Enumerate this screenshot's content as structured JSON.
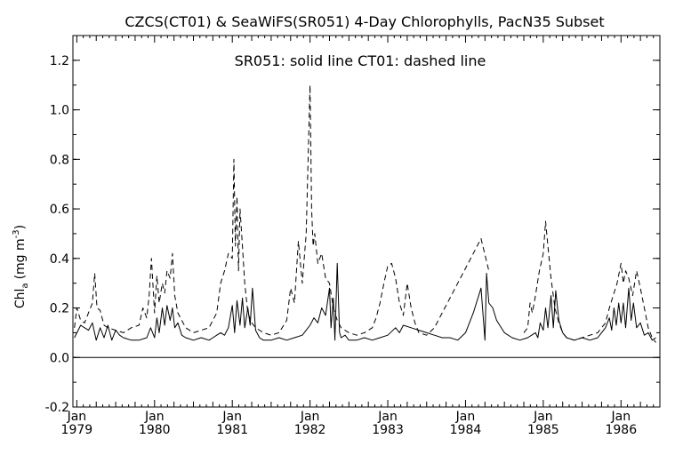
{
  "chart_data": {
    "type": "line",
    "title": "CZCS(CT01) & SeaWiFS(SR051) 4-Day Chlorophylls, PacN35 Subset",
    "annotation": "SR051: solid line   CT01: dashed line",
    "ylabel_main": "Chl",
    "ylabel_sub": "a",
    "ylabel_unit": "(mg m",
    "ylabel_sup": "-3",
    "ylabel_close": ")",
    "ylim": [
      -0.2,
      1.3
    ],
    "xlim": [
      1978.95,
      1986.5
    ],
    "y_ticks": [
      -0.2,
      0.0,
      0.2,
      0.4,
      0.6,
      0.8,
      1.0,
      1.2
    ],
    "y_tick_labels": [
      "-0.2",
      "0.0",
      "0.2",
      "0.4",
      "0.6",
      "0.8",
      "1.0",
      "1.2"
    ],
    "x_ticks": [
      {
        "x": 1979,
        "month": "Jan",
        "year": "1979"
      },
      {
        "x": 1980,
        "month": "Jan",
        "year": "1980"
      },
      {
        "x": 1981,
        "month": "Jan",
        "year": "1981"
      },
      {
        "x": 1982,
        "month": "Jan",
        "year": "1982"
      },
      {
        "x": 1983,
        "month": "Jan",
        "year": "1983"
      },
      {
        "x": 1984,
        "month": "Jan",
        "year": "1984"
      },
      {
        "x": 1985,
        "month": "Jan",
        "year": "1985"
      },
      {
        "x": 1986,
        "month": "Jan",
        "year": "1986"
      }
    ],
    "zero_line": 0.0,
    "grid": false,
    "series": [
      {
        "name": "SR051",
        "style": "solid",
        "x": [
          1978.97,
          1979.05,
          1979.1,
          1979.15,
          1979.2,
          1979.25,
          1979.3,
          1979.35,
          1979.4,
          1979.45,
          1979.5,
          1979.55,
          1979.6,
          1979.7,
          1979.8,
          1979.9,
          1979.95,
          1980.0,
          1980.03,
          1980.06,
          1980.1,
          1980.13,
          1980.16,
          1980.2,
          1980.23,
          1980.26,
          1980.3,
          1980.35,
          1980.4,
          1980.5,
          1980.6,
          1980.7,
          1980.75,
          1980.8,
          1980.85,
          1980.9,
          1980.95,
          1981.0,
          1981.03,
          1981.06,
          1981.1,
          1981.13,
          1981.16,
          1981.2,
          1981.23,
          1981.26,
          1981.3,
          1981.35,
          1981.4,
          1981.5,
          1981.6,
          1981.7,
          1981.8,
          1981.9,
          1981.95,
          1982.0,
          1982.05,
          1982.1,
          1982.15,
          1982.2,
          1982.25,
          1982.27,
          1982.3,
          1982.32,
          1982.35,
          1982.38,
          1982.4,
          1982.45,
          1982.5,
          1982.6,
          1982.7,
          1982.8,
          1982.9,
          1983.0,
          1983.1,
          1983.15,
          1983.2,
          1983.3,
          1983.4,
          1983.5,
          1983.6,
          1983.7,
          1983.8,
          1983.9,
          1984.0,
          1984.1,
          1984.2,
          1984.25,
          1984.27,
          1984.3,
          1984.35,
          1984.4,
          1984.5,
          1984.6,
          1984.7,
          1984.8,
          1984.85,
          1984.9,
          1984.93,
          1984.96,
          1985.0,
          1985.03,
          1985.06,
          1985.1,
          1985.13,
          1985.16,
          1985.2,
          1985.25,
          1985.3,
          1985.4,
          1985.5,
          1985.6,
          1985.7,
          1985.75,
          1985.8,
          1985.85,
          1985.88,
          1985.91,
          1985.94,
          1985.97,
          1986.0,
          1986.03,
          1986.06,
          1986.1,
          1986.13,
          1986.16,
          1986.2,
          1986.25,
          1986.3,
          1986.35,
          1986.4,
          1986.45
        ],
        "y": [
          0.08,
          0.13,
          0.12,
          0.11,
          0.14,
          0.07,
          0.12,
          0.08,
          0.13,
          0.07,
          0.11,
          0.09,
          0.08,
          0.07,
          0.07,
          0.08,
          0.12,
          0.08,
          0.16,
          0.1,
          0.2,
          0.13,
          0.21,
          0.15,
          0.2,
          0.12,
          0.14,
          0.09,
          0.08,
          0.07,
          0.08,
          0.07,
          0.08,
          0.09,
          0.1,
          0.09,
          0.12,
          0.21,
          0.1,
          0.23,
          0.13,
          0.24,
          0.12,
          0.2,
          0.13,
          0.28,
          0.11,
          0.08,
          0.07,
          0.07,
          0.08,
          0.07,
          0.08,
          0.09,
          0.11,
          0.13,
          0.16,
          0.14,
          0.2,
          0.17,
          0.28,
          0.12,
          0.24,
          0.07,
          0.38,
          0.1,
          0.08,
          0.09,
          0.07,
          0.07,
          0.08,
          0.07,
          0.08,
          0.09,
          0.12,
          0.1,
          0.13,
          0.12,
          0.11,
          0.1,
          0.09,
          0.08,
          0.08,
          0.07,
          0.1,
          0.18,
          0.28,
          0.07,
          0.34,
          0.22,
          0.2,
          0.15,
          0.1,
          0.08,
          0.07,
          0.08,
          0.09,
          0.1,
          0.08,
          0.14,
          0.11,
          0.2,
          0.12,
          0.25,
          0.12,
          0.27,
          0.15,
          0.1,
          0.08,
          0.07,
          0.08,
          0.07,
          0.08,
          0.1,
          0.12,
          0.16,
          0.11,
          0.2,
          0.13,
          0.22,
          0.14,
          0.22,
          0.12,
          0.28,
          0.15,
          0.22,
          0.12,
          0.14,
          0.09,
          0.1,
          0.07,
          0.08
        ]
      },
      {
        "name": "CT01",
        "style": "dashed",
        "x": [
          1978.97,
          1979.0,
          1979.05,
          1979.1,
          1979.15,
          1979.2,
          1979.23,
          1979.26,
          1979.3,
          1979.35,
          1979.4,
          1979.5,
          1979.6,
          1979.7,
          1979.8,
          1979.85,
          1979.9,
          1979.93,
          1979.96,
          1980.0,
          1980.03,
          1980.06,
          1980.1,
          1980.13,
          1980.16,
          1980.2,
          1980.23,
          1980.26,
          1980.3,
          1980.4,
          1980.5,
          1980.6,
          1980.7,
          1980.8,
          1980.85,
          1980.9,
          1980.95,
          1981.0,
          1981.02,
          1981.04,
          1981.06,
          1981.08,
          1981.1,
          1981.13,
          1981.16,
          1981.2,
          1981.25,
          1981.3,
          1981.4,
          1981.5,
          1981.6,
          1981.7,
          1981.75,
          1981.8,
          1981.85,
          1981.9,
          1981.95,
          1982.0,
          1982.02,
          1982.04,
          1982.06,
          1982.1,
          1982.15,
          1982.2,
          1982.25,
          1982.3,
          1982.35,
          1982.4,
          1982.5,
          1982.6,
          1982.7,
          1982.8,
          1982.85,
          1982.9,
          1982.95,
          1983.0,
          1983.05,
          1983.1,
          1983.15,
          1983.2,
          1983.25,
          1983.3,
          1983.35,
          1983.4,
          1983.5,
          1983.6,
          1983.7,
          1983.8,
          1983.9,
          1984.0,
          1984.1,
          1984.2,
          1984.3
        ],
        "y": [
          0.12,
          0.2,
          0.15,
          0.14,
          0.18,
          0.22,
          0.34,
          0.2,
          0.19,
          0.13,
          0.12,
          0.11,
          0.1,
          0.12,
          0.13,
          0.2,
          0.16,
          0.25,
          0.4,
          0.18,
          0.33,
          0.22,
          0.3,
          0.26,
          0.35,
          0.32,
          0.42,
          0.25,
          0.18,
          0.12,
          0.1,
          0.11,
          0.12,
          0.18,
          0.3,
          0.35,
          0.42,
          0.4,
          0.8,
          0.45,
          0.65,
          0.35,
          0.6,
          0.45,
          0.3,
          0.18,
          0.14,
          0.12,
          0.1,
          0.09,
          0.1,
          0.15,
          0.28,
          0.22,
          0.47,
          0.3,
          0.5,
          1.1,
          0.6,
          0.45,
          0.5,
          0.38,
          0.42,
          0.32,
          0.3,
          0.2,
          0.15,
          0.12,
          0.1,
          0.09,
          0.1,
          0.12,
          0.16,
          0.22,
          0.3,
          0.37,
          0.38,
          0.32,
          0.22,
          0.17,
          0.3,
          0.2,
          0.14,
          0.1,
          0.09,
          0.12,
          0.18,
          0.24,
          0.3,
          0.36,
          0.42,
          0.48,
          0.35
        ]
      },
      {
        "name": "CT01",
        "style": "dashed",
        "x": [
          1984.75,
          1984.8,
          1984.83,
          1984.86,
          1984.9,
          1984.95,
          1985.0,
          1985.03,
          1985.06,
          1985.1,
          1985.15,
          1985.2,
          1985.25,
          1985.3,
          1985.4,
          1985.5,
          1985.6,
          1985.7,
          1985.8,
          1985.85,
          1985.9,
          1985.95,
          1986.0,
          1986.03,
          1986.06,
          1986.1,
          1986.15,
          1986.2,
          1986.25,
          1986.3,
          1986.35,
          1986.4,
          1986.45
        ],
        "y": [
          0.1,
          0.12,
          0.22,
          0.18,
          0.25,
          0.35,
          0.42,
          0.55,
          0.45,
          0.32,
          0.2,
          0.14,
          0.1,
          0.08,
          0.07,
          0.08,
          0.09,
          0.1,
          0.14,
          0.2,
          0.25,
          0.3,
          0.38,
          0.3,
          0.35,
          0.32,
          0.25,
          0.35,
          0.28,
          0.2,
          0.12,
          0.08,
          0.06
        ]
      }
    ]
  }
}
